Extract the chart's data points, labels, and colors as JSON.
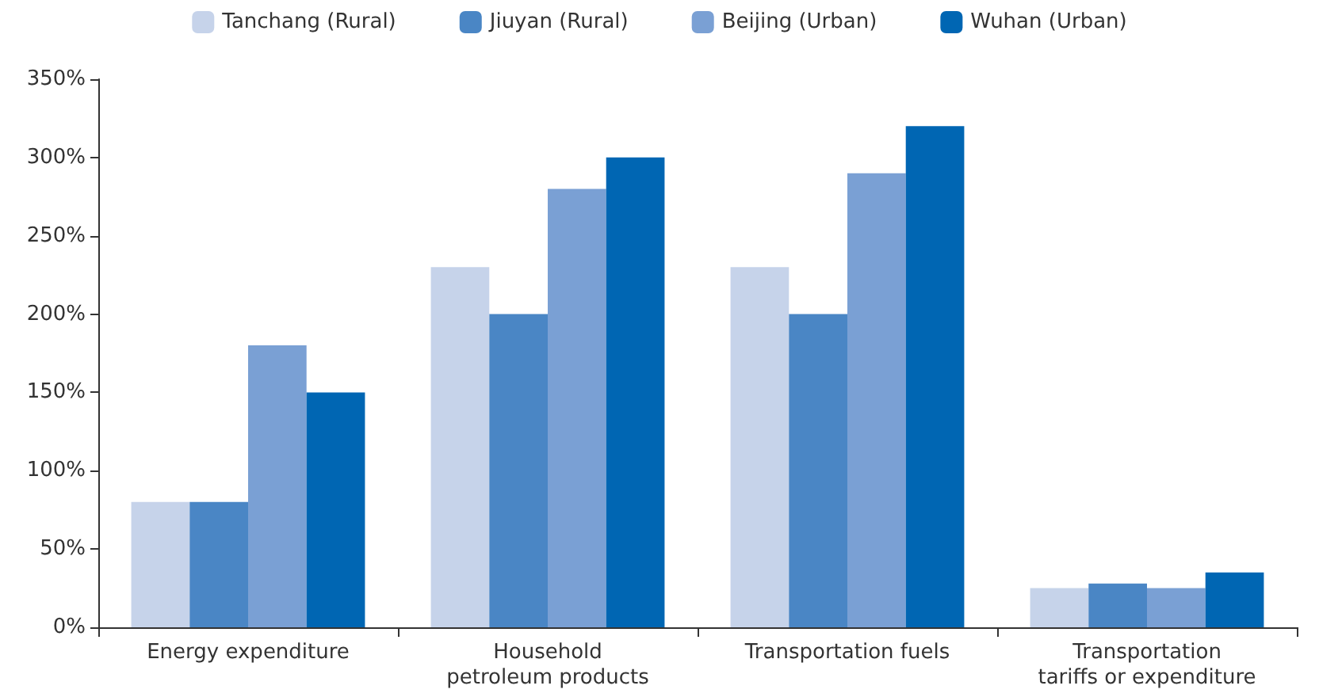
{
  "chart_data": {
    "type": "bar",
    "categories": [
      "Energy expenditure",
      "Household\npetroleum products",
      "Transportation fuels",
      "Transportation\ntariffs or expenditure"
    ],
    "series": [
      {
        "name": "Tanchang (Rural)",
        "color": "#c6d3ea",
        "values": [
          80,
          230,
          230,
          25
        ]
      },
      {
        "name": "Jiuyan (Rural)",
        "color": "#4a86c5",
        "values": [
          80,
          200,
          200,
          28
        ]
      },
      {
        "name": "Beijing (Urban)",
        "color": "#7aa0d4",
        "values": [
          180,
          280,
          290,
          25
        ]
      },
      {
        "name": "Wuhan (Urban)",
        "color": "#0066b3",
        "values": [
          150,
          300,
          320,
          35
        ]
      }
    ],
    "ylim": [
      0,
      350
    ],
    "yticks": [
      {
        "value": 0,
        "label": "0%"
      },
      {
        "value": 50,
        "label": "50%"
      },
      {
        "value": 100,
        "label": "100%"
      },
      {
        "value": 150,
        "label": "150%"
      },
      {
        "value": 200,
        "label": "200%"
      },
      {
        "value": 250,
        "label": "250%"
      },
      {
        "value": 300,
        "label": "300%"
      },
      {
        "value": 350,
        "label": "350%"
      }
    ],
    "grid": false,
    "legend": "top"
  }
}
